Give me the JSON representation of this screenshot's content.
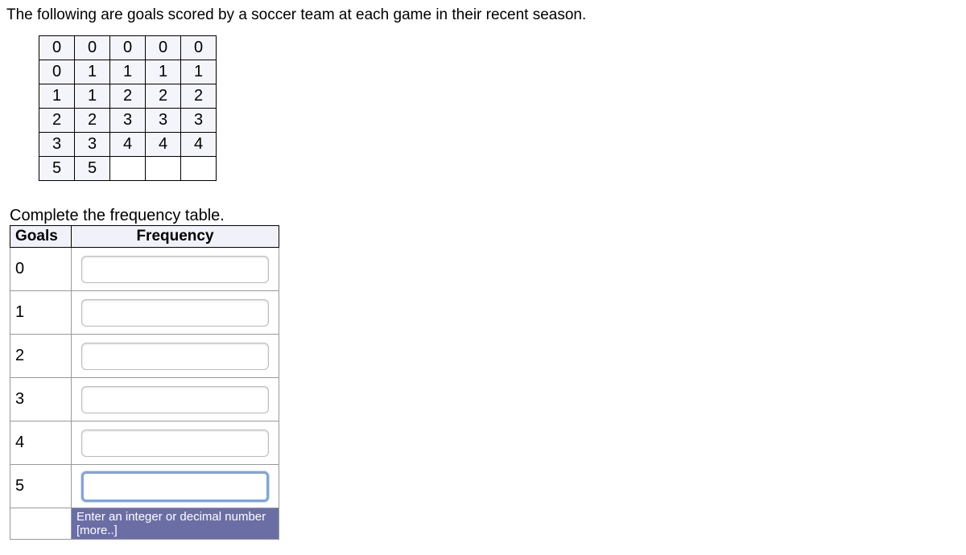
{
  "prompt_text": "The following are goals scored by a soccer team at each game in their recent season.",
  "data_grid": [
    [
      "0",
      "0",
      "0",
      "0",
      "0"
    ],
    [
      "0",
      "1",
      "1",
      "1",
      "1"
    ],
    [
      "1",
      "1",
      "2",
      "2",
      "2"
    ],
    [
      "2",
      "2",
      "3",
      "3",
      "3"
    ],
    [
      "3",
      "3",
      "4",
      "4",
      "4"
    ],
    [
      "5",
      "5",
      "",
      "",
      ""
    ]
  ],
  "section_label": "Complete the frequency table.",
  "freq_table": {
    "headers": {
      "goals": "Goals",
      "frequency": "Frequency"
    },
    "rows": [
      {
        "goal": "0",
        "value": ""
      },
      {
        "goal": "1",
        "value": ""
      },
      {
        "goal": "2",
        "value": ""
      },
      {
        "goal": "3",
        "value": ""
      },
      {
        "goal": "4",
        "value": ""
      },
      {
        "goal": "5",
        "value": ""
      }
    ],
    "focused_index": 5,
    "hint_text": "Enter an integer or decimal number [more..]"
  },
  "colors": {
    "cell_bg": "#f4f4fb",
    "hint_bg": "#6b6ea5",
    "focus_border": "#7ea6d9"
  }
}
